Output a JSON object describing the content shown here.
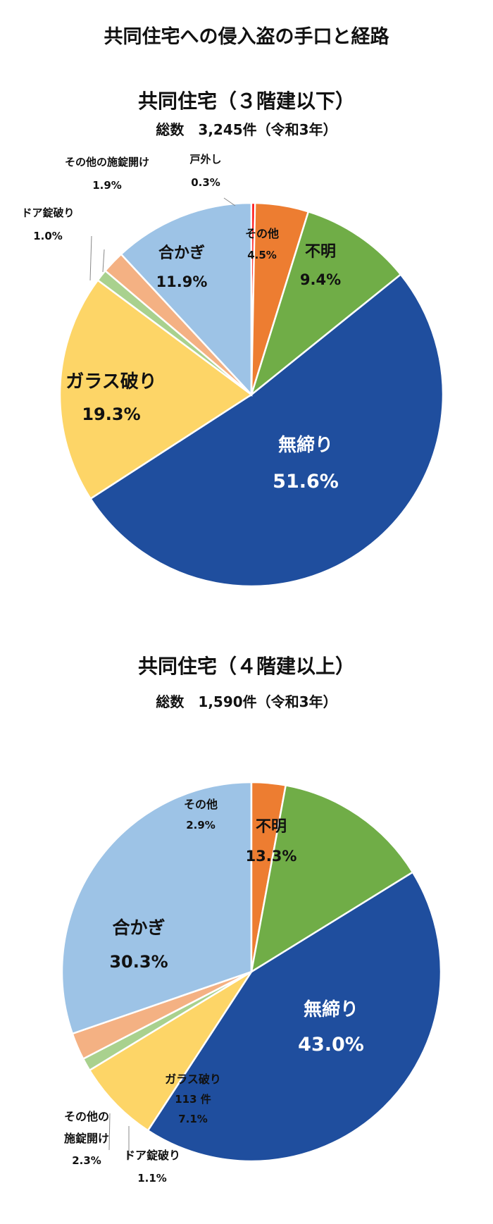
{
  "title": "共同住宅への侵入盗の手口と経路",
  "chart_data": [
    {
      "type": "pie",
      "title": "共同住宅（３階建以下）",
      "subtitle": "総数　3,245件（令和3年）",
      "slices": [
        {
          "label": "無締り",
          "value": 51.6,
          "value_text": "51.6%",
          "color": "#1f4e9e"
        },
        {
          "label": "ガラス破り",
          "value": 19.3,
          "value_text": "19.3%",
          "color": "#fdd567"
        },
        {
          "label": "ドア錠破り",
          "value": 1.0,
          "value_text": "1.0%",
          "color": "#a9d18e"
        },
        {
          "label": "その他の施錠開け",
          "value": 1.9,
          "value_text": "1.9%",
          "color": "#f4b183"
        },
        {
          "label": "合かぎ",
          "value": 11.9,
          "value_text": "11.9%",
          "color": "#9dc3e6"
        },
        {
          "label": "戸外し",
          "value": 0.3,
          "value_text": "0.3%",
          "color": "#ff0000"
        },
        {
          "label": "その他",
          "value": 4.5,
          "value_text": "4.5%",
          "color": "#ed7d31"
        },
        {
          "label": "不明",
          "value": 9.4,
          "value_text": "9.4%",
          "color": "#70ad47"
        }
      ]
    },
    {
      "type": "pie",
      "title": "共同住宅（４階建以上）",
      "subtitle": "総数　1,590件（令和3年）",
      "slices": [
        {
          "label": "無締り",
          "value": 43.0,
          "value_text": "43.0%",
          "color": "#1f4e9e"
        },
        {
          "label": "ガラス破り",
          "value": 7.1,
          "value_text": "7.1%",
          "extra": "113 件",
          "color": "#fdd567"
        },
        {
          "label": "ドア錠破り",
          "value": 1.1,
          "value_text": "1.1%",
          "color": "#a9d18e"
        },
        {
          "label": "その他の施錠開け",
          "value": 2.3,
          "value_text": "2.3%",
          "color": "#f4b183"
        },
        {
          "label": "合かぎ",
          "value": 30.3,
          "value_text": "30.3%",
          "color": "#9dc3e6"
        },
        {
          "label": "その他",
          "value": 2.9,
          "value_text": "2.9%",
          "color": "#ed7d31"
        },
        {
          "label": "不明",
          "value": 13.3,
          "value_text": "13.3%",
          "color": "#70ad47"
        }
      ]
    }
  ]
}
